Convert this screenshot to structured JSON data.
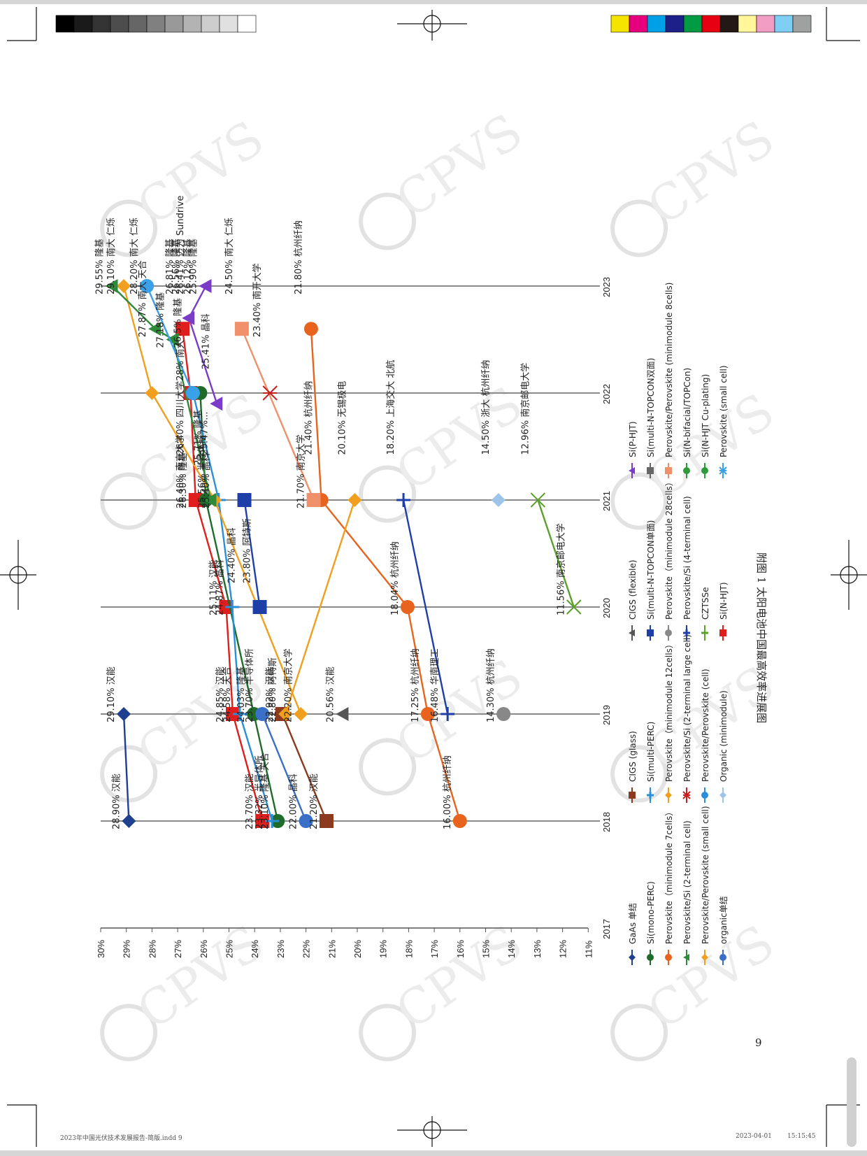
{
  "caption": "附图 1  太阳电池中国最高效率进展图",
  "page_number": "9",
  "footer": {
    "file": "2023年中国光伏技术发展报告-简版.indd   9",
    "date": "2023-04-01",
    "time": "15:15:45"
  },
  "watermark": "CPVS",
  "color_bar_right": [
    "#f5e400",
    "#e6007e",
    "#00a0e9",
    "#1d2088",
    "#009944",
    "#e60012",
    "#231815",
    "#fff799",
    "#f19ec2",
    "#7ecef4",
    "#9fa0a0"
  ],
  "chart_data": {
    "type": "line",
    "orientation": "rotated-90-cw",
    "xlabel": "",
    "ylabel": "",
    "x_ticks": [
      "2017",
      "2018",
      "2019",
      "2020",
      "2021",
      "2022",
      "2023"
    ],
    "y_ticks": [
      "30%",
      "29%",
      "28%",
      "27%",
      "26%",
      "25%",
      "24%",
      "23%",
      "22%",
      "21%",
      "20%",
      "19%",
      "18%",
      "17%",
      "16%",
      "15%",
      "14%",
      "13%",
      "12%",
      "11%"
    ],
    "xlim": [
      2017,
      2023.6
    ],
    "ylim": [
      11,
      30
    ],
    "grid": "vertical at each year",
    "legend": [
      {
        "name": "GaAs 单结",
        "color": "#1f3f8f",
        "marker": "diamond"
      },
      {
        "name": "Si(mono-PERC)",
        "color": "#1e6b2a",
        "marker": "circle"
      },
      {
        "name": "Perovskite（minimodule 7cells）",
        "color": "#e8641e",
        "marker": "circle"
      },
      {
        "name": "Perovskite/Si (2-terminal cell)",
        "color": "#2e8b3a",
        "marker": "triangle"
      },
      {
        "name": "Perovskite/Perovskite (small cell)",
        "color": "#f0a01e",
        "marker": "diamond"
      },
      {
        "name": "organic单结",
        "color": "#3a6fc8",
        "marker": "circle"
      },
      {
        "name": "CIGS (glass)",
        "color": "#8b3a1e",
        "marker": "square"
      },
      {
        "name": "Si(multi-PERC)",
        "color": "#2a8fd8",
        "marker": "plus"
      },
      {
        "name": "Perovskite（minimodule 12cells）",
        "color": "#f0a01e",
        "marker": "diamond"
      },
      {
        "name": "Perovskite/Si (2-terminal large cell)",
        "color": "#c81e1e",
        "marker": "star"
      },
      {
        "name": "Perovskite/Perovskite (cell)",
        "color": "#2a8fd8",
        "marker": "circle"
      },
      {
        "name": "Organic (minimodule)",
        "color": "#9ec4ea",
        "marker": "diamond"
      },
      {
        "name": "CIGS (flexible)",
        "color": "#555555",
        "marker": "triangle"
      },
      {
        "name": "Si(multi-N-TOPCON单面)",
        "color": "#1e3fa8",
        "marker": "square"
      },
      {
        "name": "Perovskite（minimodule 28cells）",
        "color": "#888888",
        "marker": "circle"
      },
      {
        "name": "Perovskite/Si (4-terminal cell)",
        "color": "#1e3fa8",
        "marker": "plus"
      },
      {
        "name": "CZTSSe",
        "color": "#5aa02a",
        "marker": "line"
      },
      {
        "name": "Si(N-HJT)",
        "color": "#e01e1e",
        "marker": "square"
      },
      {
        "name": "Si(P-HJT)",
        "color": "#7a3cc8",
        "marker": "triangle"
      },
      {
        "name": "Si(multi-N-TOPCON双面)",
        "color": "#666666",
        "marker": "square"
      },
      {
        "name": "Perovskite/Perovskite (minimodule 8cells)",
        "color": "#f0906a",
        "marker": "square"
      },
      {
        "name": "Si(N-bifacial/TOPCon)",
        "color": "#2e9b3a",
        "marker": "circle"
      },
      {
        "name": "Si(N-HJT Cu-plating)",
        "color": "#2e9b3a",
        "marker": "circle"
      },
      {
        "name": "Perovskite (small cell)",
        "color": "#3aa0e8",
        "marker": "star"
      }
    ],
    "series": [
      {
        "name": "GaAs 单结",
        "color": "#1f3f8f",
        "marker": "diamond",
        "points": [
          [
            2018,
            28.9
          ],
          [
            2019,
            29.1
          ]
        ]
      },
      {
        "name": "Si(N-HJT)",
        "color": "#e01e1e",
        "marker": "square",
        "points": [
          [
            2018,
            23.7
          ],
          [
            2019,
            24.85
          ],
          [
            2020,
            25.11
          ],
          [
            2021,
            26.3
          ],
          [
            2022,
            26.5
          ],
          [
            2022.6,
            26.81
          ]
        ]
      },
      {
        "name": "Si(mono-PERC)",
        "color": "#1e6b2a",
        "marker": "circle",
        "points": [
          [
            2018,
            23.1
          ],
          [
            2019,
            24.03
          ],
          [
            2021,
            25.9
          ],
          [
            2022,
            26.12
          ]
        ]
      },
      {
        "name": "CIGS (glass)",
        "color": "#8b3a1e",
        "marker": "square",
        "points": [
          [
            2018,
            21.2
          ],
          [
            2019,
            22.92
          ]
        ]
      },
      {
        "name": "Si(multi-PERC)",
        "color": "#2a8fd8",
        "marker": "plus",
        "points": [
          [
            2018,
            23.32
          ],
          [
            2019,
            24.58
          ],
          [
            2020,
            24.87
          ],
          [
            2021,
            25.4
          ],
          [
            2022,
            26.4
          ]
        ]
      },
      {
        "name": "organic单结",
        "color": "#3a6fc8",
        "marker": "circle",
        "points": [
          [
            2018,
            22.0
          ],
          [
            2019,
            23.7
          ]
        ]
      },
      {
        "name": "Perovskite/Perovskite (small cell)",
        "color": "#f0a01e",
        "marker": "diamond",
        "points": [
          [
            2019,
            22.2
          ],
          [
            2021,
            25.56
          ],
          [
            2022,
            28.0
          ],
          [
            2023,
            29.1
          ]
        ]
      },
      {
        "name": "Perovskite/Si (2-terminal cell)",
        "color": "#2e8b3a",
        "marker": "triangle",
        "points": [
          [
            2021,
            25.71
          ],
          [
            2022.5,
            27.18
          ],
          [
            2022.6,
            27.87
          ],
          [
            2023,
            29.55
          ]
        ]
      },
      {
        "name": "Perovskite (small cell)",
        "color": "#3aa0e8",
        "marker": "circle",
        "points": [
          [
            2022,
            26.41
          ],
          [
            2023,
            28.2
          ]
        ]
      },
      {
        "name": "Si(P-HJT)",
        "color": "#7a3cc8",
        "marker": "triangle",
        "points": [
          [
            2021.9,
            25.47
          ],
          [
            2022.7,
            26.56
          ],
          [
            2023,
            25.9
          ]
        ]
      },
      {
        "name": "Si(multi-N-TOPCON单面)",
        "color": "#1e3fa8",
        "marker": "square",
        "points": [
          [
            2020,
            23.8
          ],
          [
            2021,
            24.4
          ]
        ]
      },
      {
        "name": "CIGS (flexible)",
        "color": "#555555",
        "marker": "triangle",
        "points": [
          [
            2019,
            20.56
          ]
        ]
      },
      {
        "name": "Perovskite（minimodule 7cells）",
        "color": "#e8641e",
        "marker": "circle",
        "points": [
          [
            2018,
            16.0
          ],
          [
            2019,
            17.25
          ],
          [
            2020,
            18.04
          ],
          [
            2021,
            21.4
          ],
          [
            2022.6,
            21.8
          ]
        ]
      },
      {
        "name": "Perovskite/Perovskite (minimodule 8cells)",
        "color": "#f0906a",
        "marker": "square",
        "points": [
          [
            2021,
            21.7
          ],
          [
            2022.6,
            24.5
          ]
        ]
      },
      {
        "name": "Perovskite/Si (2-terminal large cell)",
        "color": "#c81e1e",
        "marker": "star",
        "points": [
          [
            2022,
            23.4
          ]
        ]
      },
      {
        "name": "Perovskite（minimodule 12cells）",
        "color": "#f0a01e",
        "marker": "diamond",
        "points": [
          [
            2019,
            22.8
          ],
          [
            2021,
            20.1
          ]
        ]
      },
      {
        "name": "Perovskite/Si (4-terminal cell)",
        "color": "#1e3fa8",
        "marker": "plus",
        "points": [
          [
            2019,
            16.48
          ],
          [
            2021,
            18.2
          ]
        ]
      },
      {
        "name": "Perovskite（minimodule 28cells）",
        "color": "#888888",
        "marker": "circle",
        "points": [
          [
            2019,
            14.3
          ]
        ]
      },
      {
        "name": "Organic (minimodule)",
        "color": "#9ec4ea",
        "marker": "diamond",
        "points": [
          [
            2021,
            14.5
          ]
        ]
      },
      {
        "name": "CZTSSe",
        "color": "#5aa02a",
        "marker": "x",
        "points": [
          [
            2020,
            11.56
          ],
          [
            2021,
            12.96
          ]
        ]
      }
    ],
    "annotations": [
      {
        "text": "28.90% 汉能",
        "x": 2018,
        "y": 28.9
      },
      {
        "text": "29.10% 汉能",
        "x": 2019,
        "y": 29.1
      },
      {
        "text": "23.70% 汉能",
        "x": 2018,
        "y": 23.7
      },
      {
        "text": "23.32% 半导体所",
        "x": 2018,
        "y": 23.32
      },
      {
        "text": "23.10% 隆基 天合",
        "x": 2018,
        "y": 23.1
      },
      {
        "text": "22.00% 晶科",
        "x": 2018,
        "y": 22.0
      },
      {
        "text": "21.20% 汉能",
        "x": 2018,
        "y": 21.2
      },
      {
        "text": "16.00% 杭州纤纳",
        "x": 2018,
        "y": 16.0
      },
      {
        "text": "24.85% 汉能",
        "x": 2019,
        "y": 24.85
      },
      {
        "text": "24.58% 天合",
        "x": 2019,
        "y": 24.58
      },
      {
        "text": "24.03% 隆基",
        "x": 2019,
        "y": 24.03
      },
      {
        "text": "23.70% 半导体所",
        "x": 2019,
        "y": 23.7
      },
      {
        "text": "22.92% 汉能",
        "x": 2019,
        "y": 22.92
      },
      {
        "text": "22.80% 阿特斯",
        "x": 2019,
        "y": 22.8
      },
      {
        "text": "22.20% 南京大学",
        "x": 2019,
        "y": 22.2
      },
      {
        "text": "20.56% 汉能",
        "x": 2019,
        "y": 20.56
      },
      {
        "text": "17.25% 杭州纤纳",
        "x": 2019,
        "y": 17.25
      },
      {
        "text": "16.48% 华南理工",
        "x": 2019,
        "y": 16.48
      },
      {
        "text": "14.30% 杭州纤纳",
        "x": 2019,
        "y": 14.3
      },
      {
        "text": "25.11% 汉能",
        "x": 2020,
        "y": 25.11
      },
      {
        "text": "24.87% 晶科",
        "x": 2020,
        "y": 24.87
      },
      {
        "text": "24.40% 晶科",
        "x": 2020.3,
        "y": 24.4
      },
      {
        "text": "23.80% 阿特斯",
        "x": 2020.3,
        "y": 23.8
      },
      {
        "text": "18.04% 杭州纤纳",
        "x": 2020,
        "y": 18.04
      },
      {
        "text": "11.56% 南京邮电大学",
        "x": 2020,
        "y": 11.56
      },
      {
        "text": "26.40% 四川大学28% 南大",
        "x": 2021.5,
        "y": 26.4
      },
      {
        "text": "25.56% 半导体所",
        "x": 2021,
        "y": 25.56
      },
      {
        "text": "26.40% 南京大学",
        "x": 2021,
        "y": 26.4
      },
      {
        "text": "26.30% 隆基",
        "x": 2021,
        "y": 26.3
      },
      {
        "text": "25.40% 晶科",
        "x": 2021,
        "y": 25.4
      },
      {
        "text": "25.71% 隆基",
        "x": 2021.4,
        "y": 25.71
      },
      {
        "text": "25.47%...",
        "x": 2021.5,
        "y": 25.47
      },
      {
        "text": "21.70% 南京大学",
        "x": 2021,
        "y": 21.7
      },
      {
        "text": "21.40% 杭州纤纳",
        "x": 2021.5,
        "y": 21.4
      },
      {
        "text": "20.10% 无锡极电",
        "x": 2021.5,
        "y": 20.1
      },
      {
        "text": "18.20% 上海交大 北航",
        "x": 2021.5,
        "y": 18.2
      },
      {
        "text": "14.50% 浙大 杭州纤纳",
        "x": 2021.5,
        "y": 14.5
      },
      {
        "text": "12.96% 南京邮电大学",
        "x": 2021.5,
        "y": 12.96
      },
      {
        "text": "27.87% 南大 天合",
        "x": 2022.6,
        "y": 27.87
      },
      {
        "text": "27.18% 隆基",
        "x": 2022.5,
        "y": 27.18
      },
      {
        "text": "26.5% 隆基",
        "x": 2022.5,
        "y": 26.5
      },
      {
        "text": "25.41% 晶科",
        "x": 2022.3,
        "y": 25.41
      },
      {
        "text": "23.40% 南开大学",
        "x": 2022.6,
        "y": 23.4
      },
      {
        "text": "21.80% 杭州纤纳",
        "x": 2023,
        "y": 21.8
      },
      {
        "text": "29.55% 隆基",
        "x": 2023,
        "y": 29.55
      },
      {
        "text": "29.10% 南大 仁烁",
        "x": 2023,
        "y": 29.1
      },
      {
        "text": "28.20% 南大 仁烁",
        "x": 2023,
        "y": 28.2
      },
      {
        "text": "26.81% 隆基",
        "x": 2023,
        "y": 26.81
      },
      {
        "text": "26.56% 隆基",
        "x": 2023,
        "y": 26.56
      },
      {
        "text": "25.90% 隆基",
        "x": 2023,
        "y": 25.9
      },
      {
        "text": "26.12% 隆基",
        "x": 2023,
        "y": 26.12
      },
      {
        "text": "26.41% 迈为 Sundrive",
        "x": 2023,
        "y": 26.41
      },
      {
        "text": "24.50% 南大 仁烁",
        "x": 2023,
        "y": 24.5
      }
    ]
  }
}
